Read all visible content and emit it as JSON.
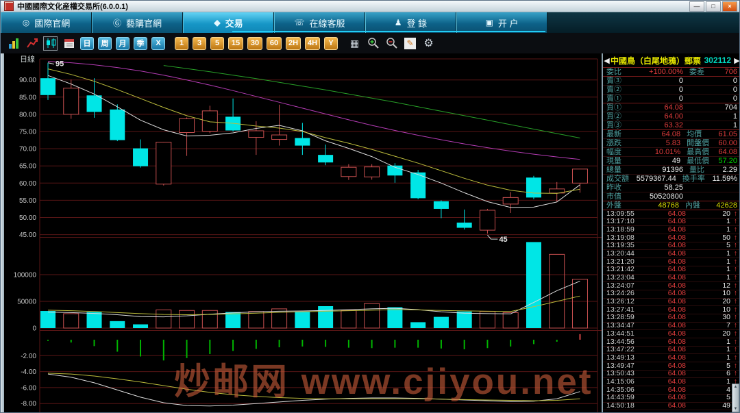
{
  "window": {
    "title": "中國國際文化産權交易所(6.0.0.1)",
    "buttons": {
      "minimize": "—",
      "maximize": "□",
      "close": "×"
    }
  },
  "tabbar": {
    "active_index": 2,
    "tabs": [
      {
        "label": "國際官網",
        "icon": "◎"
      },
      {
        "label": "藝購官網",
        "icon": "Ⓖ"
      },
      {
        "label": "交易",
        "icon": "◆"
      },
      {
        "label": "在線客服",
        "icon": "☏"
      },
      {
        "label": "登 錄",
        "icon": "♟"
      },
      {
        "label": "开 户",
        "icon": "▣"
      }
    ]
  },
  "toolbar": {
    "blue_periods": [
      "日",
      "周",
      "月",
      "季",
      "X"
    ],
    "orange_periods": [
      "1",
      "3",
      "5",
      "15",
      "30",
      "60",
      "2H",
      "4H",
      "Y"
    ],
    "right_icons": {
      "table": "▦",
      "edit": "✎",
      "settings": "⚙"
    }
  },
  "watermark": "炒邮网 www.cjiyou.net",
  "palette": {
    "up": "#c85050",
    "down": "#00e6e6",
    "grid": "#5a1616",
    "axis_text": "#c8c8c8",
    "ma_white": "#dcdcdc",
    "ma_yellow": "#bcbc3c",
    "ma_magenta": "#b43cb4",
    "ma_green": "#28a028",
    "macd_green": "#00b400",
    "macd_red": "#d24646",
    "accent_cyan": "#22ccf4",
    "red": "#e03c3c",
    "green": "#00d800",
    "white": "#e8e8e8",
    "yellow": "#d8d800"
  },
  "chart_data": {
    "type": "candlestick",
    "period_label": "日線",
    "price_ticks": [
      90,
      85,
      80,
      75,
      70,
      65,
      60,
      55,
      50,
      45
    ],
    "volume_ticks": [
      100000,
      50000,
      0
    ],
    "macd_ticks": [
      -2,
      -4,
      -6,
      -8
    ],
    "candle_columns": [
      "open",
      "close",
      "high",
      "low",
      "volume",
      "dir(u=up,d=down)"
    ],
    "candles": [
      [
        90.5,
        85.6,
        95.0,
        84.2,
        32000,
        "d"
      ],
      [
        80.0,
        87.6,
        90.1,
        78.7,
        27000,
        "u"
      ],
      [
        85.5,
        80.7,
        90.5,
        79.0,
        30000,
        "d"
      ],
      [
        81.4,
        72.5,
        82.9,
        72.2,
        13000,
        "d"
      ],
      [
        70.1,
        64.9,
        72.7,
        64.5,
        7000,
        "d"
      ],
      [
        59.7,
        71.9,
        72.0,
        59.3,
        34000,
        "u"
      ],
      [
        74.7,
        78.7,
        79.1,
        67.9,
        33000,
        "u"
      ],
      [
        75.1,
        81.0,
        82.5,
        74.5,
        33000,
        "u"
      ],
      [
        79.3,
        75.3,
        84.6,
        75.0,
        30000,
        "d"
      ],
      [
        73.3,
        75.2,
        78.0,
        68.2,
        31000,
        "u"
      ],
      [
        72.7,
        74.0,
        82.8,
        70.9,
        36000,
        "u"
      ],
      [
        73.1,
        70.9,
        77.5,
        68.2,
        31000,
        "d"
      ],
      [
        68.2,
        66.0,
        71.2,
        65.2,
        41000,
        "d"
      ],
      [
        61.9,
        64.6,
        65.5,
        60.9,
        33000,
        "u"
      ],
      [
        61.8,
        64.7,
        65.5,
        61.0,
        46000,
        "u"
      ],
      [
        65.1,
        62.2,
        65.8,
        60.1,
        39000,
        "d"
      ],
      [
        63.1,
        55.6,
        63.8,
        55.3,
        11000,
        "d"
      ],
      [
        54.7,
        52.5,
        55.0,
        49.8,
        21000,
        "d"
      ],
      [
        48.5,
        47.0,
        52.3,
        46.5,
        31000,
        "d"
      ],
      [
        46.3,
        52.1,
        52.5,
        45.3,
        31000,
        "u"
      ],
      [
        53.9,
        55.8,
        57.4,
        51.3,
        29000,
        "u"
      ],
      [
        61.6,
        55.8,
        62.1,
        55.3,
        161000,
        "d"
      ],
      [
        57.1,
        58.3,
        60.3,
        54.6,
        138000,
        "u"
      ],
      [
        60.0,
        64.08,
        64.08,
        57.2,
        91396,
        "u"
      ]
    ],
    "ma_price": [
      {
        "name": "ma-short-white",
        "color_key": "ma_white",
        "values": [
          91.3,
          88.8,
          85.9,
          82.2,
          78.3,
          75.5,
          73.7,
          73.9,
          74.6,
          75.9,
          76.8,
          75.2,
          72.3,
          70.1,
          67.7,
          64.6,
          62.5,
          60.0,
          57.2,
          54.6,
          52.9,
          53.0,
          54.5,
          59.5
        ]
      },
      {
        "name": "ma-mid-yellow",
        "color_key": "ma_yellow",
        "values": [
          93.2,
          91.6,
          89.6,
          87.2,
          84.6,
          82.0,
          79.6,
          77.8,
          77.4,
          76.6,
          76.0,
          75.0,
          73.2,
          71.6,
          69.8,
          67.8,
          65.8,
          63.6,
          61.4,
          59.4,
          57.9,
          57.1,
          57.0,
          58.2
        ]
      },
      {
        "name": "ma-long-magenta",
        "color_key": "ma_magenta",
        "values": [
          95.4,
          95.0,
          94.4,
          93.6,
          92.6,
          91.4,
          90.0,
          88.5,
          86.9,
          85.2,
          83.5,
          81.8,
          80.1,
          78.4,
          76.8,
          75.3,
          73.9,
          72.6,
          71.4,
          70.3,
          69.3,
          68.4,
          67.6,
          66.9
        ]
      },
      {
        "name": "ma-longest-green",
        "color_key": "ma_green",
        "values": [
          null,
          null,
          null,
          null,
          null,
          94.2,
          93.3,
          92.4,
          91.4,
          90.4,
          89.3,
          88.2,
          87.1,
          85.9,
          84.7,
          83.5,
          82.2,
          80.9,
          79.6,
          78.3,
          77.0,
          75.7,
          74.4,
          73.1
        ]
      }
    ],
    "ma_volume": [
      {
        "name": "vol-ma-white",
        "color_key": "ma_white",
        "values": [
          30000,
          29000,
          27500,
          25000,
          21500,
          21000,
          23000,
          26000,
          28500,
          30500,
          31500,
          32000,
          33000,
          34500,
          36000,
          37000,
          34500,
          30500,
          28000,
          27000,
          26500,
          48000,
          70000,
          88000
        ]
      },
      {
        "name": "vol-ma-yellow",
        "color_key": "ma_yellow",
        "values": [
          33500,
          32500,
          31000,
          29000,
          27000,
          25500,
          25000,
          25500,
          26500,
          28000,
          29500,
          30500,
          31500,
          32500,
          33500,
          34500,
          34000,
          33000,
          32200,
          31600,
          31000,
          40000,
          50000,
          60000
        ]
      }
    ],
    "macd": {
      "hist": [
        -0.15,
        -0.35,
        -0.8,
        -1.5,
        -2.1,
        -2.6,
        -2.3,
        -1.8,
        -1.4,
        -1.15,
        -0.95,
        -0.85,
        -0.9,
        -1.0,
        -1.05,
        -1.0,
        -1.0,
        -1.1,
        -1.2,
        -1.05,
        -0.85,
        -0.55,
        -0.25,
        0.7
      ],
      "dif": [
        -4.3,
        -4.7,
        -5.4,
        -6.3,
        -7.2,
        -7.9,
        -8.25,
        -8.3,
        -8.2,
        -8.0,
        -7.8,
        -7.6,
        -7.45,
        -7.35,
        -7.3,
        -7.3,
        -7.35,
        -7.45,
        -7.55,
        -7.65,
        -7.75,
        -7.7,
        -7.4,
        -6.5
      ],
      "dea": [
        -4.2,
        -4.3,
        -4.55,
        -4.9,
        -5.3,
        -5.75,
        -6.2,
        -6.6,
        -6.9,
        -7.1,
        -7.25,
        -7.35,
        -7.4,
        -7.4,
        -7.4,
        -7.4,
        -7.4,
        -7.45,
        -7.5,
        -7.55,
        -7.6,
        -7.65,
        -7.6,
        -7.4
      ]
    },
    "annotations": [
      {
        "index": 0,
        "price": 95,
        "label": "95",
        "pos": "high"
      },
      {
        "index": 19,
        "price": 45.3,
        "label": "45",
        "pos": "low"
      }
    ]
  },
  "quote_panel": {
    "prev_arrow": "◀",
    "next_arrow": "▶",
    "name": "中國鳥（白尾地鴉）郵票",
    "code": "302112",
    "weibi": {
      "l1": "委比",
      "v1": "+100.00%",
      "l2": "委差",
      "v2": "706"
    },
    "asks": [
      [
        "賣③",
        "0",
        "0"
      ],
      [
        "賣②",
        "0",
        "0"
      ],
      [
        "賣①",
        "0",
        "0"
      ]
    ],
    "bids": [
      [
        "買①",
        "64.08",
        "704"
      ],
      [
        "買②",
        "64.00",
        "1"
      ],
      [
        "買③",
        "63.32",
        "1"
      ]
    ],
    "stats": [
      [
        "最新",
        "64.08",
        "red",
        "均價",
        "61.05",
        "red"
      ],
      [
        "漲跌",
        "5.83",
        "red",
        "開盤價",
        "60.00",
        "red"
      ],
      [
        "幅度",
        "10.01%",
        "red",
        "最高價",
        "64.08",
        "red"
      ],
      [
        "現量",
        "49",
        "white",
        "最低價",
        "57.20",
        "green"
      ],
      [
        "總量",
        "91396",
        "white",
        "量比",
        "2.29",
        "white"
      ],
      [
        "成交額",
        "5579367.44",
        "white",
        "換手率",
        "11.59%",
        "white"
      ],
      [
        "昨收",
        "58.25",
        "white",
        "",
        "",
        ""
      ],
      [
        "市值",
        "50520800",
        "white",
        "",
        "",
        ""
      ]
    ],
    "flow": {
      "l1": "外盤",
      "v1": "48768",
      "l2": "內盤",
      "v2": "42628"
    },
    "tape_price": "64.08",
    "tape_arrow": "↑",
    "tape": [
      [
        "13:09:55",
        "64.08",
        "20"
      ],
      [
        "13:17:10",
        "64.08",
        "1"
      ],
      [
        "13:18:59",
        "64.08",
        "1"
      ],
      [
        "13:19:08",
        "64.08",
        "50"
      ],
      [
        "13:19:35",
        "64.08",
        "5"
      ],
      [
        "13:20:44",
        "64.08",
        "1"
      ],
      [
        "13:21:20",
        "64.08",
        "1"
      ],
      [
        "13:21:42",
        "64.08",
        "1"
      ],
      [
        "13:23:04",
        "64.08",
        "1"
      ],
      [
        "13:24:07",
        "64.08",
        "12"
      ],
      [
        "13:24:26",
        "64.08",
        "10"
      ],
      [
        "13:26:12",
        "64.08",
        "20"
      ],
      [
        "13:27:41",
        "64.08",
        "10"
      ],
      [
        "13:28:59",
        "64.08",
        "30"
      ],
      [
        "13:34:47",
        "64.08",
        "7"
      ],
      [
        "13:44:51",
        "64.08",
        "20"
      ],
      [
        "13:44:56",
        "64.08",
        "1"
      ],
      [
        "13:47:22",
        "64.08",
        "1"
      ],
      [
        "13:49:13",
        "64.08",
        "1"
      ],
      [
        "13:49:47",
        "64.08",
        "5"
      ],
      [
        "13:50:43",
        "64.08",
        "6"
      ],
      [
        "14:15:06",
        "64.08",
        "1"
      ],
      [
        "14:35:06",
        "64.08",
        "4"
      ],
      [
        "14:43:59",
        "64.08",
        "5"
      ],
      [
        "14:50:18",
        "64.08",
        "49"
      ]
    ]
  }
}
